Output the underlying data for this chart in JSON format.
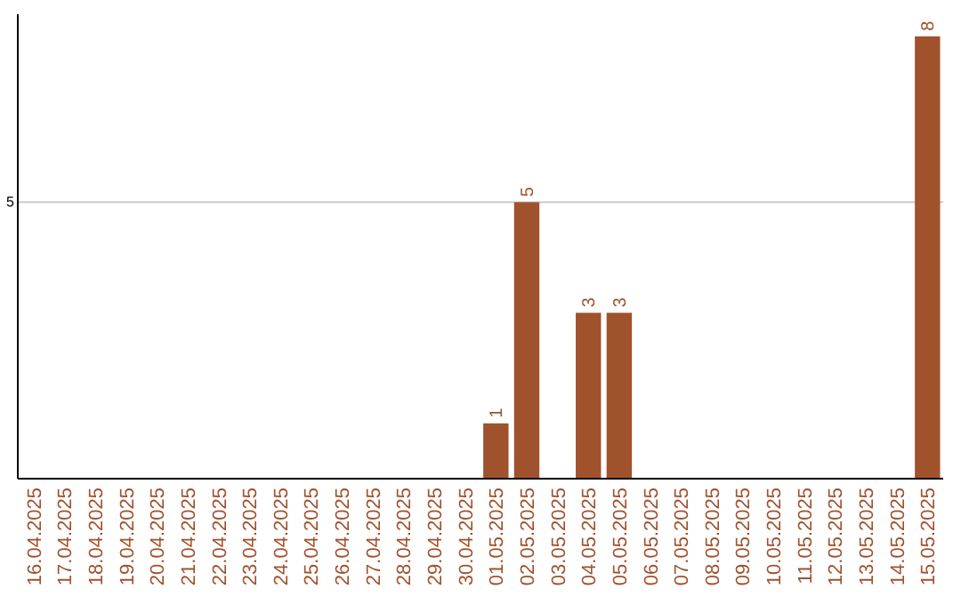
{
  "chart_data": {
    "type": "bar",
    "categories": [
      "16.04.2025",
      "17.04.2025",
      "18.04.2025",
      "19.04.2025",
      "20.04.2025",
      "21.04.2025",
      "22.04.2025",
      "23.04.2025",
      "24.04.2025",
      "25.04.2025",
      "26.04.2025",
      "27.04.2025",
      "28.04.2025",
      "29.04.2025",
      "30.04.2025",
      "01.05.2025",
      "02.05.2025",
      "03.05.2025",
      "04.05.2025",
      "05.05.2025",
      "06.05.2025",
      "07.05.2025",
      "08.05.2025",
      "09.05.2025",
      "10.05.2025",
      "11.05.2025",
      "12.05.2025",
      "13.05.2025",
      "14.05.2025",
      "15.05.2025"
    ],
    "values": [
      null,
      null,
      null,
      null,
      null,
      null,
      null,
      null,
      null,
      null,
      null,
      null,
      null,
      null,
      null,
      1,
      5,
      null,
      3,
      3,
      null,
      null,
      null,
      null,
      null,
      null,
      null,
      null,
      null,
      8
    ],
    "data_labels": true,
    "color": "#a0522d",
    "ylim": [
      0,
      8.4
    ],
    "yticks": [
      5
    ],
    "grid": "y"
  }
}
